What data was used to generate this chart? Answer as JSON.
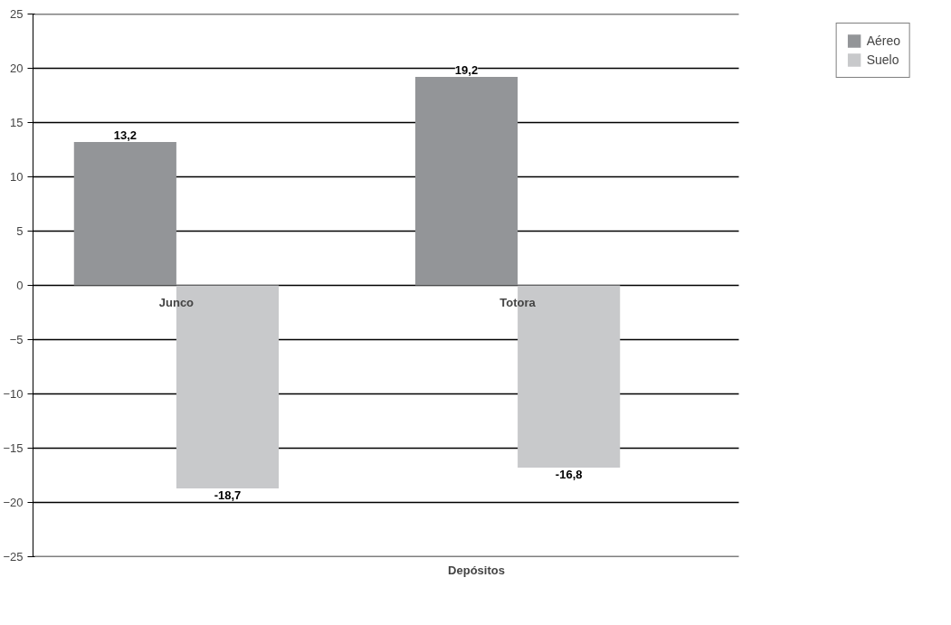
{
  "chart_data": {
    "type": "bar",
    "xlabel": "Depósitos",
    "categories": [
      "Junco",
      "Totora"
    ],
    "series": [
      {
        "name": "Aéreo",
        "color": "#939598",
        "values": [
          13.2,
          19.2
        ],
        "value_labels": [
          "13,2",
          "19,2"
        ]
      },
      {
        "name": "Suelo",
        "color": "#c8c9cb",
        "values": [
          -18.7,
          -16.8
        ],
        "value_labels": [
          "-18,7",
          "-16,8"
        ]
      }
    ],
    "ylim": [
      -25,
      25
    ],
    "yticks": [
      -25,
      -20,
      -15,
      -10,
      -5,
      0,
      5,
      10,
      15,
      20,
      25
    ],
    "grid": "y",
    "legend": "top right"
  }
}
